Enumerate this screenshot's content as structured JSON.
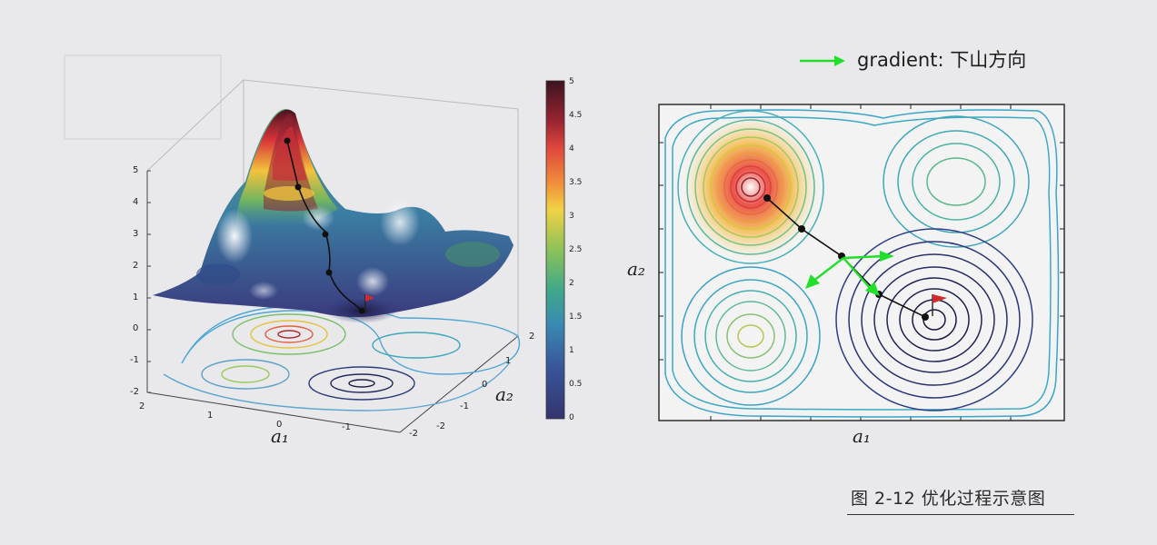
{
  "figure": {
    "caption": "图 2-12   优化过程示意图",
    "legend": {
      "arrow_color": "#22e02a",
      "label": "gradient: 下山方向"
    }
  },
  "left_plot": {
    "z_ticks": [
      "5",
      "4",
      "3",
      "2",
      "1",
      "0",
      "-1",
      "-2"
    ],
    "a1_ticks": [
      "2",
      "1",
      "0",
      "-1",
      "-2"
    ],
    "a2_ticks": [
      "2",
      "1",
      "0",
      "-1",
      "-2"
    ],
    "xlabel": "a₁",
    "ylabel": "a₂",
    "colorbar_ticks": [
      "5",
      "4.5",
      "4",
      "3.5",
      "3",
      "2.5",
      "2",
      "1.5",
      "1",
      "0.5",
      "0"
    ],
    "path_markers": 5
  },
  "right_plot": {
    "xlabel": "a₁",
    "ylabel": "a₂",
    "path_markers": 5,
    "gradient_arrows": 4
  }
}
